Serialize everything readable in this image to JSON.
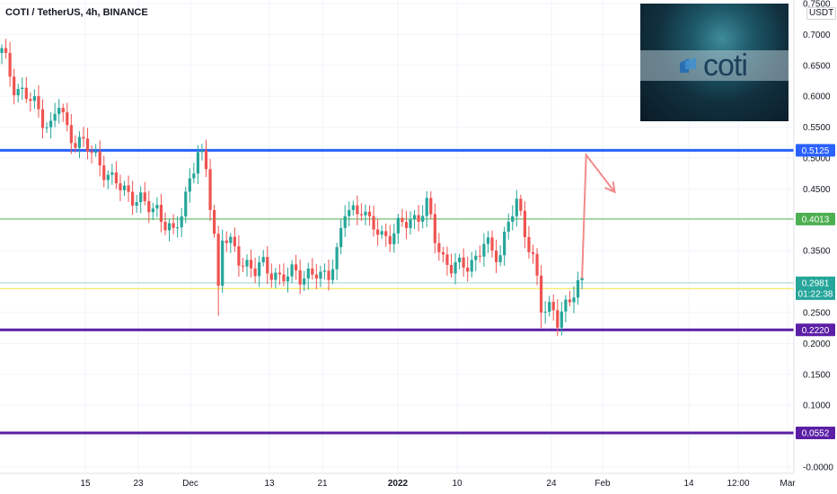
{
  "chart_data": {
    "type": "candlestick",
    "title": "COTI / TetherUS, 4h, BINANCE",
    "unit": "USDT",
    "ylim": [
      -0.02,
      0.76
    ],
    "y_ticks": [
      {
        "value": 0.75,
        "label": "0.7500"
      },
      {
        "value": 0.7,
        "label": "0.7000"
      },
      {
        "value": 0.65,
        "label": "0.6500"
      },
      {
        "value": 0.6,
        "label": "0.6000"
      },
      {
        "value": 0.55,
        "label": "0.5500"
      },
      {
        "value": 0.5,
        "label": "0.5000"
      },
      {
        "value": 0.45,
        "label": "0.4500"
      },
      {
        "value": 0.35,
        "label": "0.3500"
      },
      {
        "value": 0.25,
        "label": "0.2500"
      },
      {
        "value": 0.2,
        "label": "0.2000"
      },
      {
        "value": 0.15,
        "label": "0.1500"
      },
      {
        "value": 0.1,
        "label": "0.1000"
      },
      {
        "value": 0.05,
        "label": "0.0500"
      },
      {
        "value": 0.0,
        "label": "-0.0000"
      }
    ],
    "x_ticks": [
      {
        "label": "15",
        "bold": false
      },
      {
        "label": "23",
        "bold": false
      },
      {
        "label": "Dec",
        "bold": false
      },
      {
        "label": "13",
        "bold": false
      },
      {
        "label": "21",
        "bold": false
      },
      {
        "label": "2022",
        "bold": true
      },
      {
        "label": "10",
        "bold": false
      },
      {
        "label": "24",
        "bold": false
      },
      {
        "label": "Feb",
        "bold": false
      },
      {
        "label": "14",
        "bold": false
      },
      {
        "label": "12:00",
        "bold": false
      },
      {
        "label": "Mar",
        "bold": false
      }
    ],
    "horizontal_levels": [
      {
        "value": 0.5125,
        "label": "0.5125",
        "color": "#2962ff",
        "width": 3
      },
      {
        "value": 0.4013,
        "label": "0.4013",
        "color": "#4caf50",
        "width": 1
      },
      {
        "value": 0.222,
        "label": "0.2220",
        "color": "#5b1fa6",
        "width": 3
      },
      {
        "value": 0.0552,
        "label": "0.0552",
        "color": "#5b1fa6",
        "width": 3
      }
    ],
    "last_price": {
      "value": 0.2981,
      "label": "0.2981",
      "countdown": "01:22:38",
      "color": "#26a69a"
    },
    "yellow_level": {
      "value": 0.2889,
      "label": "0.2889",
      "color": "#f5e642"
    },
    "projection": [
      {
        "index": 142,
        "price": 0.305
      },
      {
        "index": 143,
        "price": 0.505
      },
      {
        "index": 150,
        "price": 0.445
      }
    ],
    "candle_path": [
      [
        0,
        0.67
      ],
      [
        3,
        0.62
      ],
      [
        8,
        0.585
      ],
      [
        12,
        0.55
      ],
      [
        14,
        0.585
      ],
      [
        16,
        0.545
      ],
      [
        20,
        0.52
      ],
      [
        24,
        0.495
      ],
      [
        27,
        0.46
      ],
      [
        30,
        0.45
      ],
      [
        33,
        0.435
      ],
      [
        35,
        0.42
      ],
      [
        38,
        0.42
      ],
      [
        40,
        0.395
      ],
      [
        42,
        0.37
      ],
      [
        44,
        0.415
      ],
      [
        46,
        0.47
      ],
      [
        48,
        0.505
      ],
      [
        50,
        0.48
      ],
      [
        52,
        0.38
      ],
      [
        53,
        0.29
      ],
      [
        54,
        0.375
      ],
      [
        56,
        0.355
      ],
      [
        58,
        0.34
      ],
      [
        60,
        0.33
      ],
      [
        62,
        0.315
      ],
      [
        64,
        0.325
      ],
      [
        66,
        0.32
      ],
      [
        68,
        0.305
      ],
      [
        70,
        0.305
      ],
      [
        72,
        0.32
      ],
      [
        74,
        0.31
      ],
      [
        76,
        0.31
      ],
      [
        78,
        0.305
      ],
      [
        80,
        0.32
      ],
      [
        82,
        0.345
      ],
      [
        84,
        0.41
      ],
      [
        86,
        0.415
      ],
      [
        88,
        0.425
      ],
      [
        90,
        0.39
      ],
      [
        93,
        0.375
      ],
      [
        96,
        0.38
      ],
      [
        98,
        0.39
      ],
      [
        100,
        0.4
      ],
      [
        102,
        0.41
      ],
      [
        104,
        0.42
      ],
      [
        106,
        0.37
      ],
      [
        108,
        0.34
      ],
      [
        110,
        0.325
      ],
      [
        112,
        0.32
      ],
      [
        114,
        0.33
      ],
      [
        116,
        0.34
      ],
      [
        118,
        0.36
      ],
      [
        120,
        0.345
      ],
      [
        122,
        0.35
      ],
      [
        124,
        0.4
      ],
      [
        126,
        0.42
      ],
      [
        128,
        0.385
      ],
      [
        130,
        0.34
      ],
      [
        131,
        0.305
      ],
      [
        132,
        0.255
      ],
      [
        133,
        0.245
      ],
      [
        135,
        0.26
      ],
      [
        136,
        0.245
      ],
      [
        138,
        0.26
      ],
      [
        140,
        0.275
      ],
      [
        142,
        0.305
      ]
    ]
  }
}
